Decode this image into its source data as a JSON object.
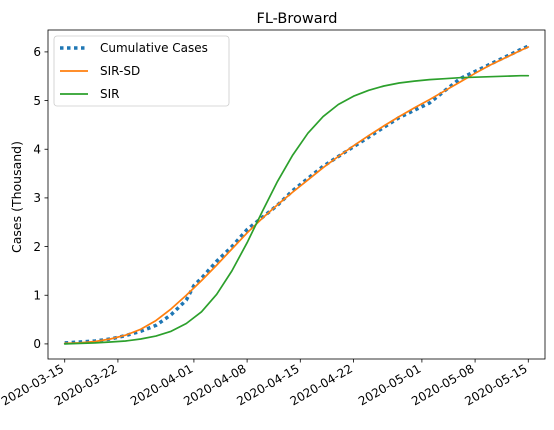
{
  "chart_data": {
    "type": "line",
    "title": "FL-Broward",
    "xlabel": "",
    "ylabel": "Cases (Thousand)",
    "x_ticks": [
      "2020-03-15",
      "2020-03-22",
      "2020-04-01",
      "2020-04-08",
      "2020-04-15",
      "2020-04-22",
      "2020-05-01",
      "2020-05-08",
      "2020-05-15"
    ],
    "x_tick_days": [
      0,
      7,
      17,
      24,
      31,
      38,
      47,
      54,
      61
    ],
    "y_ticks": [
      0,
      1,
      2,
      3,
      4,
      5,
      6
    ],
    "xlim": [
      -2.2,
      63.2
    ],
    "ylim": [
      -0.31,
      6.45
    ],
    "legend_position": "top-left",
    "series": [
      {
        "name": "Cumulative Cases",
        "color": "#1f77b4",
        "style": "dotted",
        "x": [
          0,
          2,
          4,
          6,
          8,
          10,
          12,
          14,
          16,
          17,
          18,
          20,
          22,
          24,
          26,
          28,
          30,
          32,
          34,
          36,
          38,
          40,
          42,
          44,
          46,
          48,
          50,
          52,
          54,
          56,
          58,
          60,
          61
        ],
        "y": [
          0.02,
          0.04,
          0.06,
          0.1,
          0.17,
          0.26,
          0.38,
          0.6,
          0.9,
          1.2,
          1.35,
          1.7,
          2.0,
          2.35,
          2.6,
          2.85,
          3.15,
          3.4,
          3.65,
          3.85,
          4.05,
          4.25,
          4.45,
          4.65,
          4.8,
          4.95,
          5.2,
          5.45,
          5.6,
          5.75,
          5.9,
          6.05,
          6.12
        ]
      },
      {
        "name": "SIR-SD",
        "color": "#ff7f0e",
        "style": "solid",
        "x": [
          0,
          2,
          4,
          6,
          8,
          10,
          12,
          14,
          16,
          18,
          20,
          22,
          24,
          26,
          28,
          30,
          32,
          34,
          36,
          38,
          40,
          42,
          44,
          46,
          48,
          50,
          52,
          54,
          56,
          58,
          60,
          61
        ],
        "y": [
          0.01,
          0.02,
          0.05,
          0.1,
          0.18,
          0.3,
          0.48,
          0.72,
          1.0,
          1.3,
          1.62,
          1.95,
          2.28,
          2.58,
          2.86,
          3.12,
          3.37,
          3.62,
          3.85,
          4.07,
          4.28,
          4.48,
          4.67,
          4.85,
          5.02,
          5.2,
          5.38,
          5.56,
          5.73,
          5.88,
          6.03,
          6.1
        ]
      },
      {
        "name": "SIR",
        "color": "#2ca02c",
        "style": "solid",
        "x": [
          0,
          2,
          4,
          6,
          8,
          10,
          12,
          14,
          16,
          18,
          20,
          22,
          24,
          26,
          28,
          30,
          32,
          34,
          36,
          38,
          40,
          42,
          44,
          46,
          48,
          50,
          52,
          54,
          56,
          58,
          60,
          61
        ],
        "y": [
          0.0,
          0.01,
          0.02,
          0.04,
          0.06,
          0.1,
          0.16,
          0.26,
          0.42,
          0.66,
          1.02,
          1.5,
          2.08,
          2.72,
          3.34,
          3.88,
          4.33,
          4.67,
          4.92,
          5.09,
          5.21,
          5.3,
          5.36,
          5.4,
          5.43,
          5.45,
          5.47,
          5.48,
          5.49,
          5.5,
          5.51,
          5.51
        ]
      }
    ]
  }
}
